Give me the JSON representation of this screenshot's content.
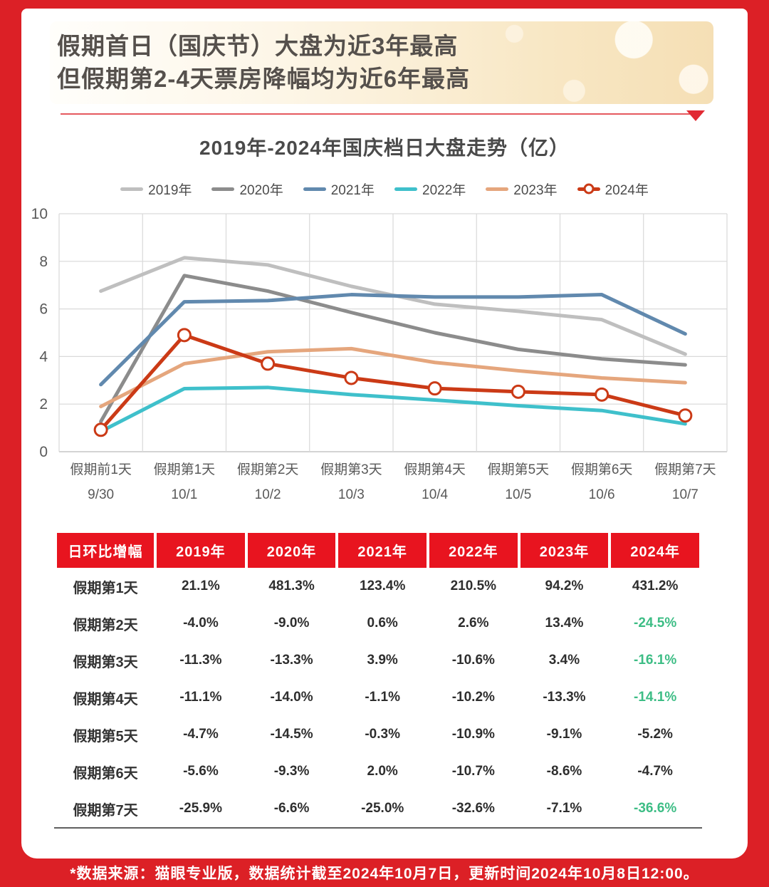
{
  "header": {
    "title_line1": "假期首日（国庆节）大盘为近3年最高",
    "title_line2": "但假期第2-4天票房降幅均为近6年最高"
  },
  "chart_data": {
    "type": "line",
    "title": "2019年-2024年国庆档日大盘走势（亿）",
    "unit": "亿",
    "categories": [
      "假期前1天",
      "假期第1天",
      "假期第2天",
      "假期第3天",
      "假期第4天",
      "假期第5天",
      "假期第6天",
      "假期第7天"
    ],
    "dates": [
      "9/30",
      "10/1",
      "10/2",
      "10/3",
      "10/4",
      "10/5",
      "10/6",
      "10/7"
    ],
    "ylim": [
      0,
      10
    ],
    "y_ticks": [
      0,
      2,
      4,
      6,
      8,
      10
    ],
    "grid": true,
    "legend_position": "top",
    "series": [
      {
        "name": "2019年",
        "color": "#bfbfbf",
        "marker": false,
        "values": [
          6.75,
          8.15,
          7.85,
          6.95,
          6.2,
          5.9,
          5.55,
          4.1
        ]
      },
      {
        "name": "2020年",
        "color": "#8c8c8c",
        "marker": false,
        "values": [
          1.27,
          7.4,
          6.75,
          5.85,
          5.0,
          4.3,
          3.9,
          3.65
        ]
      },
      {
        "name": "2021年",
        "color": "#6189ae",
        "marker": false,
        "values": [
          2.82,
          6.3,
          6.35,
          6.6,
          6.5,
          6.5,
          6.6,
          4.95
        ]
      },
      {
        "name": "2022年",
        "color": "#3fc0cb",
        "marker": false,
        "values": [
          0.85,
          2.65,
          2.7,
          2.4,
          2.17,
          1.93,
          1.73,
          1.17
        ]
      },
      {
        "name": "2023年",
        "color": "#e5a67d",
        "marker": false,
        "values": [
          1.9,
          3.7,
          4.2,
          4.33,
          3.75,
          3.4,
          3.1,
          2.9
        ]
      },
      {
        "name": "2024年",
        "color": "#cb3a16",
        "marker": true,
        "values": [
          0.92,
          4.9,
          3.7,
          3.1,
          2.66,
          2.52,
          2.4,
          1.52
        ]
      }
    ]
  },
  "table": {
    "header": [
      "日环比增幅",
      "2019年",
      "2020年",
      "2021年",
      "2022年",
      "2023年",
      "2024年"
    ],
    "rows": [
      {
        "label": "假期第1天",
        "values": [
          "21.1%",
          "481.3%",
          "123.4%",
          "210.5%",
          "94.2%",
          "431.2%"
        ],
        "green": []
      },
      {
        "label": "假期第2天",
        "values": [
          "-4.0%",
          "-9.0%",
          "0.6%",
          "2.6%",
          "13.4%",
          "-24.5%"
        ],
        "green": [
          5
        ]
      },
      {
        "label": "假期第3天",
        "values": [
          "-11.3%",
          "-13.3%",
          "3.9%",
          "-10.6%",
          "3.4%",
          "-16.1%"
        ],
        "green": [
          5
        ]
      },
      {
        "label": "假期第4天",
        "values": [
          "-11.1%",
          "-14.0%",
          "-1.1%",
          "-10.2%",
          "-13.3%",
          "-14.1%"
        ],
        "green": [
          5
        ]
      },
      {
        "label": "假期第5天",
        "values": [
          "-4.7%",
          "-14.5%",
          "-0.3%",
          "-10.9%",
          "-9.1%",
          "-5.2%"
        ],
        "green": []
      },
      {
        "label": "假期第6天",
        "values": [
          "-5.6%",
          "-9.3%",
          "2.0%",
          "-10.7%",
          "-8.6%",
          "-4.7%"
        ],
        "green": []
      },
      {
        "label": "假期第7天",
        "values": [
          "-25.9%",
          "-6.6%",
          "-25.0%",
          "-32.6%",
          "-7.1%",
          "-36.6%"
        ],
        "green": [
          5
        ]
      }
    ]
  },
  "footer": {
    "text": "*数据来源：猫眼专业版，数据统计截至2024年10月7日，更新时间2024年10月8日12:00。"
  },
  "colors": {
    "frame_red": "#dc2026",
    "table_header_red": "#e8141f",
    "green_value": "#3dbd85",
    "grid_gray": "#d9d9d9",
    "title_gray": "#55504c"
  }
}
